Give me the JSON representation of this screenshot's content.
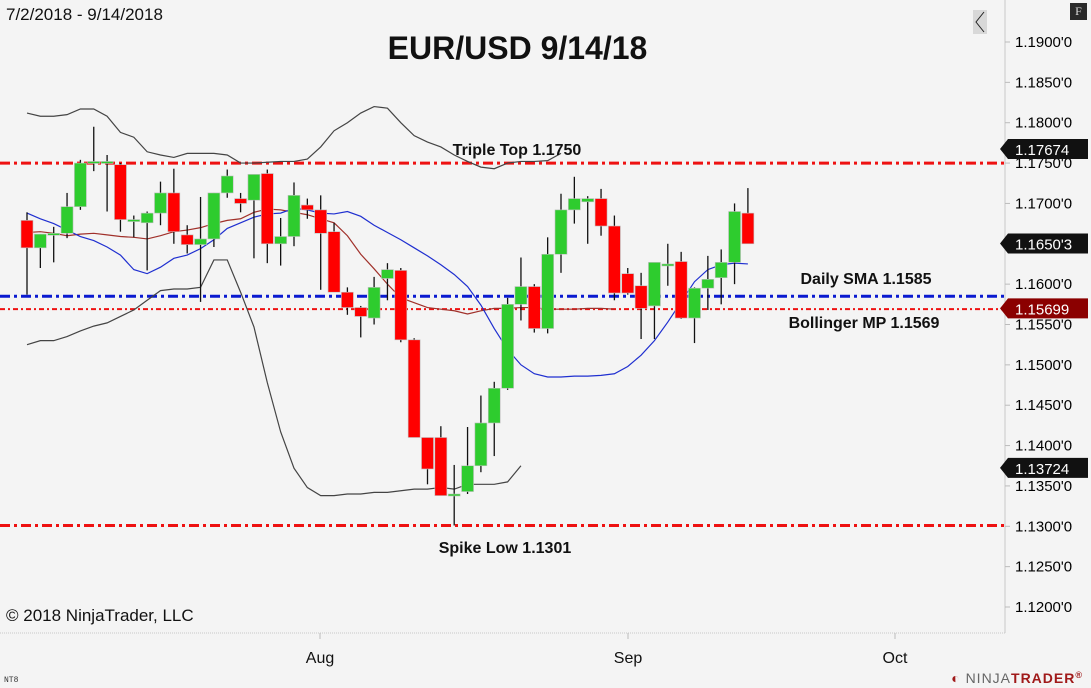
{
  "header": {
    "date_range": "7/2/2018 - 9/14/2018",
    "title": "EUR/USD 9/14/18"
  },
  "footer": {
    "copyright": "© 2018 NinjaTrader, LLC",
    "brand_plain": "NINJA",
    "brand_red": "TRADER",
    "brand_mark": "®",
    "small_mark": "NT8"
  },
  "controls": {
    "corner_button": "F",
    "collapse_icon": "chevron-left-icon"
  },
  "colors": {
    "up_candle": "#2ecc2e",
    "down_candle": "#ff0000",
    "sma_line": "#1f2fd0",
    "bollinger_mid": "#a0302a",
    "bollinger_band": "#444444",
    "resistance_line": "#ee1111",
    "sma_level_line": "#0a1ad0",
    "price_label_bg": "#111111",
    "mp_label_bg": "#8b0000",
    "background": "#f4f4f4"
  },
  "axis": {
    "y_ticks": [
      "1.1900'0",
      "1.1850'0",
      "1.1800'0",
      "1.1750'0",
      "1.1700'0",
      "1.1650'3",
      "1.1600'0",
      "1.1550'0",
      "1.1500'0",
      "1.1450'0",
      "1.1400'0",
      "1.1350'0",
      "1.1300'0",
      "1.1250'0",
      "1.1200'0"
    ],
    "x_ticks": [
      "Aug",
      "Sep",
      "Oct"
    ],
    "price_labels": [
      {
        "text": "1.17674",
        "value": 1.17674,
        "style": "dark"
      },
      {
        "text": "1.1650'3",
        "value": 1.16503,
        "style": "dark"
      },
      {
        "text": "1.15699",
        "value": 1.15699,
        "style": "red"
      },
      {
        "text": "1.13724",
        "value": 1.13724,
        "style": "dark"
      }
    ]
  },
  "annotations": {
    "triple_top": "Triple Top 1.1750",
    "daily_sma": "Daily SMA 1.1585",
    "bollinger_mp": "Bollinger MP 1.1569",
    "spike_low": "Spike Low 1.1301"
  },
  "chart_data": {
    "type": "candlestick",
    "title": "EUR/USD 9/14/18",
    "subtitle": "7/2/2018 - 9/14/2018",
    "xlabel": "",
    "ylabel": "",
    "ylim": [
      1.117,
      1.1935
    ],
    "x_tick_labels": [
      "Aug",
      "Sep",
      "Oct"
    ],
    "grid": false,
    "horizontal_levels": [
      {
        "name": "Triple Top",
        "value": 1.175,
        "color": "#ee1111",
        "style": "dash-dot"
      },
      {
        "name": "Daily SMA",
        "value": 1.1585,
        "color": "#0a1ad0",
        "style": "dash-dot"
      },
      {
        "name": "Bollinger MP",
        "value": 1.1569,
        "color": "#ee1111",
        "style": "dotted"
      },
      {
        "name": "Spike Low",
        "value": 1.1301,
        "color": "#ee1111",
        "style": "dash-dot"
      }
    ],
    "candles": [
      {
        "o": 1.1679,
        "h": 1.1689,
        "l": 1.1587,
        "c": 1.1645
      },
      {
        "o": 1.1645,
        "h": 1.1662,
        "l": 1.162,
        "c": 1.1662
      },
      {
        "o": 1.1663,
        "h": 1.1671,
        "l": 1.1627,
        "c": 1.1663
      },
      {
        "o": 1.1663,
        "h": 1.1713,
        "l": 1.1657,
        "c": 1.1696
      },
      {
        "o": 1.1696,
        "h": 1.1754,
        "l": 1.1692,
        "c": 1.175
      },
      {
        "o": 1.175,
        "h": 1.1795,
        "l": 1.174,
        "c": 1.1752
      },
      {
        "o": 1.1752,
        "h": 1.176,
        "l": 1.169,
        "c": 1.1752
      },
      {
        "o": 1.1748,
        "h": 1.175,
        "l": 1.1665,
        "c": 1.168
      },
      {
        "o": 1.168,
        "h": 1.1685,
        "l": 1.1658,
        "c": 1.168
      },
      {
        "o": 1.1676,
        "h": 1.169,
        "l": 1.1617,
        "c": 1.1688
      },
      {
        "o": 1.1688,
        "h": 1.1727,
        "l": 1.1673,
        "c": 1.1713
      },
      {
        "o": 1.1713,
        "h": 1.1743,
        "l": 1.165,
        "c": 1.1665
      },
      {
        "o": 1.1661,
        "h": 1.1673,
        "l": 1.1638,
        "c": 1.1649
      },
      {
        "o": 1.1649,
        "h": 1.1708,
        "l": 1.1578,
        "c": 1.1656
      },
      {
        "o": 1.1656,
        "h": 1.1713,
        "l": 1.1646,
        "c": 1.1713
      },
      {
        "o": 1.1713,
        "h": 1.1742,
        "l": 1.1707,
        "c": 1.1734
      },
      {
        "o": 1.1706,
        "h": 1.1713,
        "l": 1.1689,
        "c": 1.17
      },
      {
        "o": 1.1704,
        "h": 1.1723,
        "l": 1.1632,
        "c": 1.1736
      },
      {
        "o": 1.1737,
        "h": 1.1742,
        "l": 1.1626,
        "c": 1.165
      },
      {
        "o": 1.165,
        "h": 1.1682,
        "l": 1.1623,
        "c": 1.1659
      },
      {
        "o": 1.1659,
        "h": 1.1726,
        "l": 1.1647,
        "c": 1.171
      },
      {
        "o": 1.1698,
        "h": 1.1706,
        "l": 1.1681,
        "c": 1.1692
      },
      {
        "o": 1.1692,
        "h": 1.171,
        "l": 1.1593,
        "c": 1.1663
      },
      {
        "o": 1.1665,
        "h": 1.1676,
        "l": 1.159,
        "c": 1.159
      },
      {
        "o": 1.159,
        "h": 1.1596,
        "l": 1.1562,
        "c": 1.1571
      },
      {
        "o": 1.1571,
        "h": 1.1573,
        "l": 1.1534,
        "c": 1.156
      },
      {
        "o": 1.1558,
        "h": 1.1609,
        "l": 1.155,
        "c": 1.1596
      },
      {
        "o": 1.1607,
        "h": 1.1626,
        "l": 1.158,
        "c": 1.1618
      },
      {
        "o": 1.1617,
        "h": 1.162,
        "l": 1.1528,
        "c": 1.1531
      },
      {
        "o": 1.1531,
        "h": 1.1533,
        "l": 1.141,
        "c": 1.141
      },
      {
        "o": 1.141,
        "h": 1.141,
        "l": 1.1352,
        "c": 1.1371
      },
      {
        "o": 1.141,
        "h": 1.1424,
        "l": 1.1385,
        "c": 1.1338
      },
      {
        "o": 1.134,
        "h": 1.1376,
        "l": 1.1301,
        "c": 1.134
      },
      {
        "o": 1.1343,
        "h": 1.1423,
        "l": 1.134,
        "c": 1.1375
      },
      {
        "o": 1.1375,
        "h": 1.1462,
        "l": 1.1367,
        "c": 1.1428
      },
      {
        "o": 1.1428,
        "h": 1.1479,
        "l": 1.1387,
        "c": 1.1471
      },
      {
        "o": 1.1471,
        "h": 1.1583,
        "l": 1.1469,
        "c": 1.1575
      },
      {
        "o": 1.1575,
        "h": 1.1633,
        "l": 1.1555,
        "c": 1.1597
      },
      {
        "o": 1.1597,
        "h": 1.16,
        "l": 1.154,
        "c": 1.1545
      },
      {
        "o": 1.1545,
        "h": 1.1658,
        "l": 1.1539,
        "c": 1.1637
      },
      {
        "o": 1.1637,
        "h": 1.1712,
        "l": 1.1614,
        "c": 1.1692
      },
      {
        "o": 1.1692,
        "h": 1.1733,
        "l": 1.1675,
        "c": 1.1706
      },
      {
        "o": 1.1702,
        "h": 1.1709,
        "l": 1.165,
        "c": 1.1706
      },
      {
        "o": 1.1706,
        "h": 1.1718,
        "l": 1.166,
        "c": 1.1672
      },
      {
        "o": 1.1672,
        "h": 1.1685,
        "l": 1.158,
        "c": 1.1589
      },
      {
        "o": 1.1613,
        "h": 1.162,
        "l": 1.1587,
        "c": 1.1589
      },
      {
        "o": 1.1598,
        "h": 1.1614,
        "l": 1.1532,
        "c": 1.157
      },
      {
        "o": 1.1573,
        "h": 1.1625,
        "l": 1.1532,
        "c": 1.1627
      },
      {
        "o": 1.1625,
        "h": 1.165,
        "l": 1.1598,
        "c": 1.1625
      },
      {
        "o": 1.1628,
        "h": 1.164,
        "l": 1.1557,
        "c": 1.1558
      },
      {
        "o": 1.1558,
        "h": 1.1596,
        "l": 1.1527,
        "c": 1.1595
      },
      {
        "o": 1.1595,
        "h": 1.1635,
        "l": 1.1568,
        "c": 1.1606
      },
      {
        "o": 1.1608,
        "h": 1.1643,
        "l": 1.1575,
        "c": 1.1627
      },
      {
        "o": 1.1627,
        "h": 1.17,
        "l": 1.16,
        "c": 1.169
      },
      {
        "o": 1.1688,
        "h": 1.1719,
        "l": 1.165,
        "c": 1.165
      }
    ],
    "series": [
      {
        "name": "SMA",
        "color": "#1f2fd0",
        "values": [
          1.1688,
          1.1681,
          1.1675,
          1.1667,
          1.1659,
          1.1654,
          1.1646,
          1.1636,
          1.1618,
          1.1613,
          1.1621,
          1.1632,
          1.1636,
          1.1644,
          1.1655,
          1.1669,
          1.1676,
          1.1683,
          1.1687,
          1.1688,
          1.1694,
          1.1692,
          1.1688,
          1.1687,
          1.169,
          1.1684,
          1.1673,
          1.1664,
          1.1655,
          1.1645,
          1.1635,
          1.1624,
          1.1612,
          1.1597,
          1.1574,
          1.1545,
          1.1519,
          1.15,
          1.1489,
          1.1485,
          1.1485,
          1.1486,
          1.1486,
          1.1487,
          1.1489,
          1.1498,
          1.1512,
          1.153,
          1.1553,
          1.1578,
          1.1603,
          1.1618,
          1.1624,
          1.1626,
          1.1625
        ]
      },
      {
        "name": "Bollinger Mid",
        "color": "#a0302a",
        "values": [
          1.1664,
          1.1665,
          1.1663,
          1.166,
          1.1662,
          1.1663,
          1.1661,
          1.1659,
          1.1658,
          1.1656,
          1.166,
          1.1665,
          1.1667,
          1.167,
          1.1675,
          1.1679,
          1.1681,
          1.1689,
          1.1693,
          1.1692,
          1.1689,
          1.1686,
          1.1681,
          1.1676,
          1.166,
          1.1637,
          1.1619,
          1.16,
          1.1583,
          1.1577,
          1.1571,
          1.1569,
          1.1567,
          1.1563,
          1.1567,
          1.157,
          1.157,
          1.1571,
          1.1571,
          1.1569,
          1.1569,
          1.1569,
          1.157,
          1.157,
          1.1569
        ]
      },
      {
        "name": "Bollinger Upper",
        "color": "#444444",
        "values": [
          1.1812,
          1.1808,
          1.1808,
          1.181,
          1.1817,
          1.1817,
          1.1808,
          1.1788,
          1.1782,
          1.1764,
          1.176,
          1.1757,
          1.1762,
          1.1762,
          1.1762,
          1.176,
          1.175,
          1.175,
          1.1751,
          1.1752,
          1.1752,
          1.1755,
          1.177,
          1.179,
          1.18,
          1.1812,
          1.182,
          1.1818,
          1.18,
          1.1784,
          1.1776,
          1.177,
          1.176,
          1.1752,
          1.1745,
          1.1743,
          1.175,
          1.1752,
          1.1752,
          1.1753,
          1.1762
        ]
      },
      {
        "name": "Bollinger Lower",
        "color": "#444444",
        "values": [
          1.1525,
          1.153,
          1.153,
          1.1535,
          1.1542,
          1.1548,
          1.1552,
          1.156,
          1.1568,
          1.158,
          1.1592,
          1.1594,
          1.1594,
          1.1596,
          1.163,
          1.163,
          1.159,
          1.1547,
          1.1478,
          1.1417,
          1.1372,
          1.1348,
          1.1338,
          1.1338,
          1.134,
          1.134,
          1.1342,
          1.1342,
          1.1344,
          1.1346,
          1.1346,
          1.1348,
          1.1346,
          1.1352,
          1.1352,
          1.1352,
          1.1355,
          1.1375
        ]
      }
    ]
  }
}
